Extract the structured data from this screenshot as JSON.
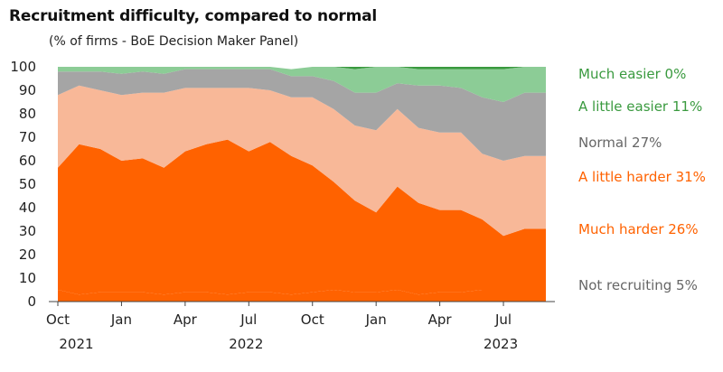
{
  "chart_data": {
    "type": "area",
    "stacked": true,
    "title": "Recruitment difficulty, compared to normal",
    "subtitle": "(% of firms - BoE Decision Maker Panel)",
    "ylim": [
      0,
      100
    ],
    "yticks": [
      "0",
      "10",
      "20",
      "30",
      "40",
      "50",
      "60",
      "70",
      "80",
      "90",
      "100"
    ],
    "x_month_labels": [
      "Oct",
      "Jan",
      "Apr",
      "Jul",
      "Oct",
      "Jan",
      "Apr",
      "Jul"
    ],
    "x_year_labels": [
      "2021",
      "2022",
      "2023"
    ],
    "x": [
      "2021-10",
      "2021-11",
      "2021-12",
      "2022-01",
      "2022-02",
      "2022-03",
      "2022-04",
      "2022-05",
      "2022-06",
      "2022-07",
      "2022-08",
      "2022-09",
      "2022-10",
      "2022-11",
      "2022-12",
      "2023-01",
      "2023-02",
      "2023-03",
      "2023-04",
      "2023-05",
      "2023-06",
      "2023-07",
      "2023-08",
      "2023-09"
    ],
    "series": [
      {
        "name": "Not recruiting",
        "legend": "Not recruiting 5%",
        "color": "#ff6200",
        "label_color": "#666666",
        "values": [
          5,
          3,
          4,
          4,
          4,
          3,
          4,
          4,
          3,
          4,
          4,
          3,
          4,
          5,
          4,
          4,
          5,
          3,
          4,
          4,
          5,
          5,
          5,
          5
        ]
      },
      {
        "name": "Much harder",
        "legend": "Much harder 26%",
        "color": "#ff6200",
        "label_color": "#ff6200",
        "values": [
          52,
          64,
          61,
          56,
          57,
          54,
          60,
          63,
          66,
          60,
          64,
          59,
          54,
          46,
          39,
          34,
          44,
          39,
          35,
          35,
          30,
          23,
          26,
          26
        ]
      },
      {
        "name": "A little harder",
        "legend": "A little harder 31%",
        "color": "#f8b898",
        "label_color": "#ff6200",
        "values": [
          31,
          25,
          25,
          28,
          28,
          32,
          27,
          24,
          22,
          27,
          22,
          25,
          29,
          31,
          32,
          35,
          33,
          32,
          33,
          33,
          28,
          32,
          31,
          31
        ]
      },
      {
        "name": "Normal",
        "legend": "Normal 27%",
        "color": "#a5a5a5",
        "label_color": "#666666",
        "values": [
          10,
          6,
          8,
          9,
          9,
          8,
          8,
          8,
          8,
          8,
          9,
          9,
          9,
          12,
          14,
          16,
          11,
          18,
          20,
          19,
          24,
          25,
          27,
          27
        ]
      },
      {
        "name": "A little easier",
        "legend": "A little easier 11%",
        "color": "#8ccc96",
        "label_color": "#3a9a3f",
        "values": [
          2,
          2,
          2,
          3,
          2,
          3,
          1,
          1,
          1,
          1,
          1,
          3,
          4,
          6,
          10,
          11,
          7,
          7,
          7,
          8,
          12,
          14,
          11,
          11
        ]
      },
      {
        "name": "Much easier",
        "legend": "Much easier 0%",
        "color": "#3a9a3f",
        "label_color": "#3a9a3f",
        "values": [
          0,
          0,
          0,
          0,
          0,
          0,
          0,
          0,
          0,
          0,
          0,
          0,
          0,
          0,
          1,
          0,
          0,
          1,
          1,
          1,
          1,
          1,
          0,
          0
        ]
      }
    ]
  }
}
